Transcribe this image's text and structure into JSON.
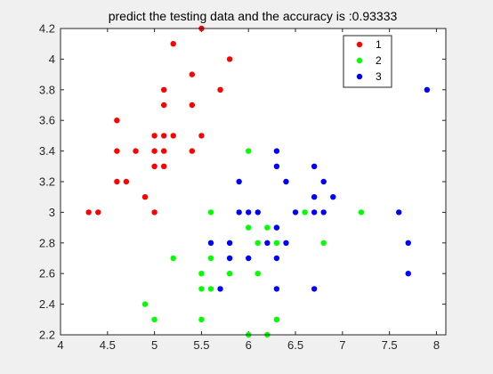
{
  "chart_data": {
    "type": "scatter",
    "title": "predict the testing data and the accuracy is :0.93333",
    "xlabel": "",
    "ylabel": "",
    "xlim": [
      4,
      8.1
    ],
    "ylim": [
      2.2,
      4.2
    ],
    "xticks": [
      "4",
      "4.5",
      "5",
      "5.5",
      "6",
      "6.5",
      "7",
      "7.5",
      "8"
    ],
    "yticks": [
      "2.2",
      "2.4",
      "2.6",
      "2.8",
      "3",
      "3.2",
      "3.4",
      "3.6",
      "3.8",
      "4",
      "4.2"
    ],
    "grid": false,
    "legend_position": "top-right",
    "series": [
      {
        "name": "1",
        "color": "#ff0000",
        "points": [
          [
            4.3,
            3.0
          ],
          [
            4.4,
            3.0
          ],
          [
            4.6,
            3.6
          ],
          [
            4.6,
            3.4
          ],
          [
            4.6,
            3.2
          ],
          [
            4.7,
            3.2
          ],
          [
            4.8,
            3.4
          ],
          [
            4.9,
            3.1
          ],
          [
            5.0,
            3.5
          ],
          [
            5.0,
            3.4
          ],
          [
            5.0,
            3.3
          ],
          [
            5.0,
            3.0
          ],
          [
            5.1,
            3.8
          ],
          [
            5.1,
            3.7
          ],
          [
            5.1,
            3.5
          ],
          [
            5.1,
            3.4
          ],
          [
            5.1,
            3.3
          ],
          [
            5.2,
            4.1
          ],
          [
            5.2,
            3.5
          ],
          [
            5.4,
            3.9
          ],
          [
            5.4,
            3.7
          ],
          [
            5.4,
            3.4
          ],
          [
            5.5,
            4.2
          ],
          [
            5.5,
            3.5
          ],
          [
            5.7,
            3.8
          ],
          [
            5.8,
            4.0
          ]
        ]
      },
      {
        "name": "2",
        "color": "#00ff00",
        "points": [
          [
            4.9,
            2.4
          ],
          [
            5.0,
            2.3
          ],
          [
            5.2,
            2.7
          ],
          [
            5.5,
            2.6
          ],
          [
            5.5,
            2.5
          ],
          [
            5.5,
            2.3
          ],
          [
            5.6,
            3.0
          ],
          [
            5.6,
            2.7
          ],
          [
            5.6,
            2.5
          ],
          [
            5.8,
            2.7
          ],
          [
            5.8,
            2.6
          ],
          [
            6.0,
            3.4
          ],
          [
            6.0,
            2.9
          ],
          [
            6.0,
            2.2
          ],
          [
            6.1,
            2.8
          ],
          [
            6.1,
            2.6
          ],
          [
            6.2,
            2.9
          ],
          [
            6.2,
            2.2
          ],
          [
            6.3,
            2.9
          ],
          [
            6.3,
            2.8
          ],
          [
            6.3,
            2.3
          ],
          [
            6.6,
            3.0
          ],
          [
            6.8,
            2.8
          ],
          [
            7.2,
            3.0
          ]
        ]
      },
      {
        "name": "3",
        "color": "#0000ff",
        "points": [
          [
            5.6,
            2.8
          ],
          [
            5.7,
            2.5
          ],
          [
            5.8,
            2.8
          ],
          [
            5.8,
            2.7
          ],
          [
            5.9,
            3.2
          ],
          [
            5.9,
            3.0
          ],
          [
            6.0,
            3.0
          ],
          [
            6.0,
            2.7
          ],
          [
            6.1,
            3.0
          ],
          [
            6.2,
            2.8
          ],
          [
            6.3,
            3.4
          ],
          [
            6.3,
            3.3
          ],
          [
            6.3,
            2.9
          ],
          [
            6.3,
            2.7
          ],
          [
            6.3,
            2.5
          ],
          [
            6.4,
            3.2
          ],
          [
            6.4,
            2.8
          ],
          [
            6.5,
            3.0
          ],
          [
            6.7,
            3.3
          ],
          [
            6.7,
            3.1
          ],
          [
            6.7,
            3.0
          ],
          [
            6.7,
            2.5
          ],
          [
            6.8,
            3.2
          ],
          [
            6.8,
            3.0
          ],
          [
            6.9,
            3.1
          ],
          [
            7.6,
            3.0
          ],
          [
            7.7,
            2.8
          ],
          [
            7.7,
            2.6
          ],
          [
            7.9,
            3.8
          ]
        ]
      }
    ]
  }
}
